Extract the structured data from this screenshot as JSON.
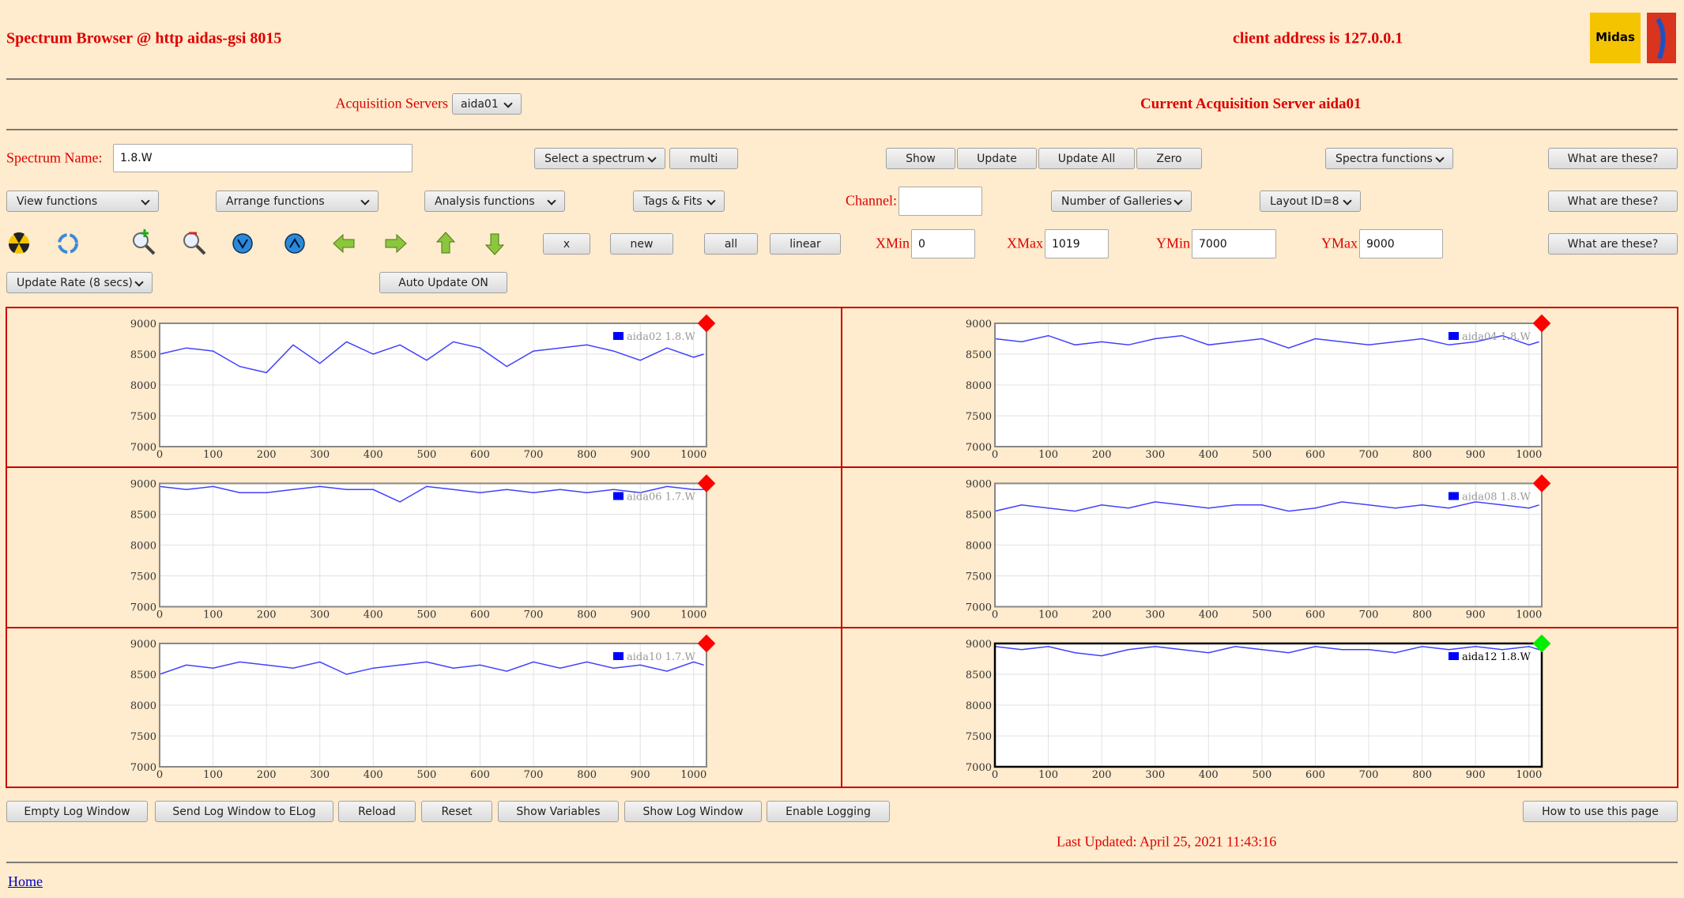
{
  "header": {
    "title": "Spectrum Browser @ http aidas-gsi 8015",
    "client": "client address is 127.0.0.1",
    "logo": "Midas"
  },
  "servers": {
    "label": "Acquisition Servers",
    "selected": "aida01",
    "current": "Current Acquisition Server aida01"
  },
  "toolbar1": {
    "spectrum_label": "Spectrum Name:",
    "spectrum": "1.8.W",
    "buttons": [
      "Select a spectrum",
      "multi",
      "Show",
      "Update",
      "Update All",
      "Zero",
      "Spectra functions",
      "What are these?"
    ]
  },
  "toolbar2": {
    "channel_label": "Channel:",
    "buttons": [
      "View functions",
      "Arrange functions",
      "Analysis functions",
      "Tags & Fits",
      "Number of Galleries",
      "Layout ID=8",
      "What are these?"
    ]
  },
  "toolbar3": {
    "buttons": [
      "x",
      "new",
      "all",
      "linear",
      "What are these?"
    ],
    "fields": [
      {
        "label": "XMin",
        "value": "0"
      },
      {
        "label": "XMax",
        "value": "1019"
      },
      {
        "label": "YMin",
        "value": "7000"
      },
      {
        "label": "YMax",
        "value": "9000"
      }
    ]
  },
  "toolbar4": {
    "buttons": [
      "Update Rate (8 secs)",
      "Auto Update ON"
    ]
  },
  "chart_data": [
    {
      "type": "line",
      "x": [
        0,
        50,
        100,
        150,
        200,
        250,
        300,
        350,
        400,
        450,
        500,
        550,
        600,
        650,
        700,
        750,
        800,
        850,
        900,
        950,
        1000,
        1019
      ],
      "xlim": [
        0,
        1024
      ],
      "ylim": [
        7000,
        9000
      ],
      "xticks": [
        0,
        100,
        200,
        300,
        400,
        500,
        600,
        700,
        800,
        900,
        1000
      ],
      "yticks": [
        7000,
        7500,
        8000,
        8500,
        9000
      ],
      "grid": true,
      "status_color": "#ff0000",
      "highlighted": false,
      "series": [
        {
          "name": "aida02 1.8.W",
          "color": "#0000ff",
          "values": [
            8500,
            8600,
            8550,
            8300,
            8200,
            8650,
            8350,
            8700,
            8500,
            8650,
            8400,
            8700,
            8600,
            8300,
            8550,
            8600,
            8650,
            8550,
            8400,
            8600,
            8450,
            8500
          ]
        }
      ]
    },
    {
      "type": "line",
      "x": [
        0,
        50,
        100,
        150,
        200,
        250,
        300,
        350,
        400,
        450,
        500,
        550,
        600,
        650,
        700,
        750,
        800,
        850,
        900,
        950,
        1000,
        1019
      ],
      "xlim": [
        0,
        1024
      ],
      "ylim": [
        7000,
        9000
      ],
      "xticks": [
        0,
        100,
        200,
        300,
        400,
        500,
        600,
        700,
        800,
        900,
        1000
      ],
      "yticks": [
        7000,
        7500,
        8000,
        8500,
        9000
      ],
      "grid": true,
      "status_color": "#ff0000",
      "highlighted": false,
      "series": [
        {
          "name": "aida04 1.8.W",
          "color": "#0000ff",
          "values": [
            8750,
            8700,
            8800,
            8650,
            8700,
            8650,
            8750,
            8800,
            8650,
            8700,
            8750,
            8600,
            8750,
            8700,
            8650,
            8700,
            8750,
            8650,
            8700,
            8800,
            8650,
            8700
          ]
        }
      ]
    },
    {
      "type": "line",
      "x": [
        0,
        50,
        100,
        150,
        200,
        250,
        300,
        350,
        400,
        450,
        500,
        550,
        600,
        650,
        700,
        750,
        800,
        850,
        900,
        950,
        1000,
        1019
      ],
      "xlim": [
        0,
        1024
      ],
      "ylim": [
        7000,
        9000
      ],
      "xticks": [
        0,
        100,
        200,
        300,
        400,
        500,
        600,
        700,
        800,
        900,
        1000
      ],
      "yticks": [
        7000,
        7500,
        8000,
        8500,
        9000
      ],
      "grid": true,
      "status_color": "#ff0000",
      "highlighted": false,
      "series": [
        {
          "name": "aida06 1.7.W",
          "color": "#0000ff",
          "values": [
            8950,
            8900,
            8950,
            8850,
            8850,
            8900,
            8950,
            8900,
            8900,
            8700,
            8950,
            8900,
            8850,
            8900,
            8850,
            8900,
            8850,
            8900,
            8850,
            8950,
            8900,
            8900
          ]
        }
      ]
    },
    {
      "type": "line",
      "x": [
        0,
        50,
        100,
        150,
        200,
        250,
        300,
        350,
        400,
        450,
        500,
        550,
        600,
        650,
        700,
        750,
        800,
        850,
        900,
        950,
        1000,
        1019
      ],
      "xlim": [
        0,
        1024
      ],
      "ylim": [
        7000,
        9000
      ],
      "xticks": [
        0,
        100,
        200,
        300,
        400,
        500,
        600,
        700,
        800,
        900,
        1000
      ],
      "yticks": [
        7000,
        7500,
        8000,
        8500,
        9000
      ],
      "grid": true,
      "status_color": "#ff0000",
      "highlighted": false,
      "series": [
        {
          "name": "aida08 1.8.W",
          "color": "#0000ff",
          "values": [
            8550,
            8650,
            8600,
            8550,
            8650,
            8600,
            8700,
            8650,
            8600,
            8650,
            8650,
            8550,
            8600,
            8700,
            8650,
            8600,
            8650,
            8600,
            8700,
            8650,
            8600,
            8650
          ]
        }
      ]
    },
    {
      "type": "line",
      "x": [
        0,
        50,
        100,
        150,
        200,
        250,
        300,
        350,
        400,
        450,
        500,
        550,
        600,
        650,
        700,
        750,
        800,
        850,
        900,
        950,
        1000,
        1019
      ],
      "xlim": [
        0,
        1024
      ],
      "ylim": [
        7000,
        9000
      ],
      "xticks": [
        0,
        100,
        200,
        300,
        400,
        500,
        600,
        700,
        800,
        900,
        1000
      ],
      "yticks": [
        7000,
        7500,
        8000,
        8500,
        9000
      ],
      "grid": true,
      "status_color": "#ff0000",
      "highlighted": false,
      "series": [
        {
          "name": "aida10 1.7.W",
          "color": "#0000ff",
          "values": [
            8500,
            8650,
            8600,
            8700,
            8650,
            8600,
            8700,
            8500,
            8600,
            8650,
            8700,
            8600,
            8650,
            8550,
            8700,
            8600,
            8700,
            8600,
            8650,
            8550,
            8700,
            8650
          ]
        }
      ]
    },
    {
      "type": "line",
      "x": [
        0,
        50,
        100,
        150,
        200,
        250,
        300,
        350,
        400,
        450,
        500,
        550,
        600,
        650,
        700,
        750,
        800,
        850,
        900,
        950,
        1000,
        1019
      ],
      "xlim": [
        0,
        1024
      ],
      "ylim": [
        7000,
        9000
      ],
      "xticks": [
        0,
        100,
        200,
        300,
        400,
        500,
        600,
        700,
        800,
        900,
        1000
      ],
      "yticks": [
        7000,
        7500,
        8000,
        8500,
        9000
      ],
      "grid": true,
      "status_color": "#00ee00",
      "highlighted": true,
      "series": [
        {
          "name": "aida12 1.8.W",
          "color": "#0000ff",
          "values": [
            8950,
            8900,
            8950,
            8850,
            8800,
            8900,
            8950,
            8900,
            8850,
            8950,
            8900,
            8850,
            8950,
            8900,
            8900,
            8850,
            8950,
            8900,
            8950,
            8900,
            8950,
            8900
          ]
        }
      ]
    }
  ],
  "footer": {
    "buttons": [
      "Empty Log Window",
      "Send Log Window to ELog",
      "Reload",
      "Reset",
      "Show Variables",
      "Show Log Window",
      "Enable Logging"
    ],
    "help": "How to use this page",
    "last_updated": "Last Updated: April 25, 2021 11:43:16",
    "home": "Home"
  }
}
